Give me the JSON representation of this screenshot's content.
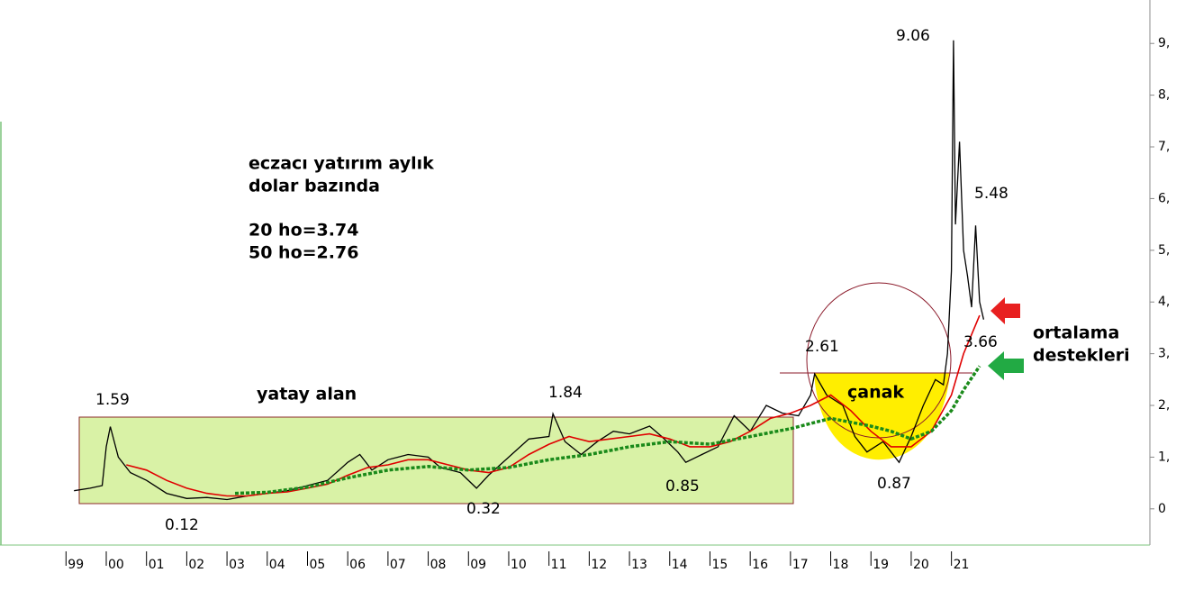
{
  "chart_data": {
    "type": "line",
    "title_lines": [
      "eczacı yatırım aylık",
      "dolar bazında",
      "20 ho=3.74",
      "50 ho=2.76"
    ],
    "annotations": [
      "1.59",
      "0.12",
      "0.32",
      "1.84",
      "0.85",
      "2.61",
      "0.87",
      "9.06",
      "5.48",
      "3.66",
      "yatay alan",
      "çanak",
      "ortalama",
      "destekleri"
    ],
    "xlim": [
      1997.36,
      2025.93
    ],
    "ylim": [
      -0.7,
      9.84
    ],
    "xticks": [
      {
        "value": 1999,
        "label": "99"
      },
      {
        "value": 2000,
        "label": "00"
      },
      {
        "value": 2001,
        "label": "01"
      },
      {
        "value": 2002,
        "label": "02"
      },
      {
        "value": 2003,
        "label": "03"
      },
      {
        "value": 2004,
        "label": "04"
      },
      {
        "value": 2005,
        "label": "05"
      },
      {
        "value": 2006,
        "label": "06"
      },
      {
        "value": 2007,
        "label": "07"
      },
      {
        "value": 2008,
        "label": "08"
      },
      {
        "value": 2009,
        "label": "09"
      },
      {
        "value": 2010,
        "label": "10"
      },
      {
        "value": 2011,
        "label": "11"
      },
      {
        "value": 2012,
        "label": "12"
      },
      {
        "value": 2013,
        "label": "13"
      },
      {
        "value": 2014,
        "label": "14"
      },
      {
        "value": 2015,
        "label": "15"
      },
      {
        "value": 2016,
        "label": "16"
      },
      {
        "value": 2017,
        "label": "17"
      },
      {
        "value": 2018,
        "label": "18"
      },
      {
        "value": 2019,
        "label": "19"
      },
      {
        "value": 2020,
        "label": "20"
      },
      {
        "value": 2021,
        "label": "21"
      }
    ],
    "yticks": [
      0,
      {
        "value": 1,
        "label": "1,"
      },
      {
        "value": 2,
        "label": "2,"
      },
      {
        "value": 3,
        "label": "3,"
      },
      {
        "value": 4,
        "label": "4,"
      },
      {
        "value": 5,
        "label": "5,"
      },
      {
        "value": 6,
        "label": "6,"
      },
      {
        "value": 7,
        "label": "7,"
      },
      {
        "value": 8,
        "label": "8,"
      },
      {
        "value": 9,
        "label": "9,"
      }
    ],
    "series": [
      {
        "color": "#000000",
        "width": 1.3,
        "x": [
          1999.2,
          1999.6,
          1999.9,
          2000.0,
          2000.1,
          2000.3,
          2000.6,
          2001.0,
          2001.5,
          2002.0,
          2002.5,
          2003.0,
          2003.5,
          2004.0,
          2004.5,
          2005.0,
          2005.5,
          2006.0,
          2006.3,
          2006.6,
          2007.0,
          2007.5,
          2008.0,
          2008.3,
          2008.8,
          2009.2,
          2009.5,
          2010.0,
          2010.5,
          2011.0,
          2011.1,
          2011.4,
          2011.8,
          2012.2,
          2012.6,
          2013.0,
          2013.5,
          2013.8,
          2014.2,
          2014.4,
          2014.8,
          2015.2,
          2015.6,
          2016.0,
          2016.4,
          2016.8,
          2017.2,
          2017.5,
          2017.6,
          2017.9,
          2018.3,
          2018.6,
          2018.9,
          2019.3,
          2019.7,
          2020.0,
          2020.3,
          2020.6,
          2020.8,
          2020.9,
          2021.0,
          2021.05,
          2021.1,
          2021.2,
          2021.3,
          2021.4,
          2021.5,
          2021.6,
          2021.7,
          2021.8
        ],
        "values": [
          0.35,
          0.4,
          0.45,
          1.2,
          1.59,
          1.0,
          0.7,
          0.55,
          0.3,
          0.2,
          0.22,
          0.18,
          0.25,
          0.3,
          0.35,
          0.45,
          0.55,
          0.9,
          1.05,
          0.75,
          0.95,
          1.05,
          1.0,
          0.8,
          0.7,
          0.4,
          0.65,
          1.0,
          1.35,
          1.4,
          1.84,
          1.3,
          1.05,
          1.3,
          1.5,
          1.45,
          1.6,
          1.4,
          1.1,
          0.9,
          1.05,
          1.2,
          1.8,
          1.5,
          2.0,
          1.85,
          1.8,
          2.2,
          2.61,
          2.2,
          2.0,
          1.4,
          1.1,
          1.3,
          0.9,
          1.4,
          2.0,
          2.5,
          2.4,
          3.0,
          4.6,
          9.06,
          5.5,
          7.1,
          5.0,
          4.5,
          3.9,
          5.48,
          4.0,
          3.66
        ]
      },
      {
        "color": "#e00000",
        "width": 1.6,
        "x": [
          2000.5,
          2001.0,
          2001.5,
          2002.0,
          2002.5,
          2003.0,
          2003.5,
          2004.0,
          2004.5,
          2005.0,
          2005.5,
          2006.0,
          2006.5,
          2007.0,
          2007.5,
          2008.0,
          2008.5,
          2009.0,
          2009.5,
          2010.0,
          2010.5,
          2011.0,
          2011.5,
          2012.0,
          2012.5,
          2013.0,
          2013.5,
          2014.0,
          2014.5,
          2015.0,
          2015.5,
          2016.0,
          2016.5,
          2017.0,
          2017.5,
          2018.0,
          2018.5,
          2019.0,
          2019.5,
          2020.0,
          2020.5,
          2021.0,
          2021.3,
          2021.7
        ],
        "values": [
          0.85,
          0.75,
          0.55,
          0.4,
          0.3,
          0.25,
          0.25,
          0.3,
          0.33,
          0.4,
          0.48,
          0.65,
          0.8,
          0.85,
          0.95,
          0.95,
          0.85,
          0.75,
          0.7,
          0.8,
          1.05,
          1.25,
          1.4,
          1.3,
          1.35,
          1.4,
          1.45,
          1.35,
          1.2,
          1.2,
          1.3,
          1.5,
          1.75,
          1.85,
          2.0,
          2.2,
          1.9,
          1.5,
          1.2,
          1.2,
          1.5,
          2.2,
          3.0,
          3.74
        ]
      },
      {
        "color": "#1a8a1a",
        "width": 3.5,
        "dashed": true,
        "x": [
          2003.2,
          2004.0,
          2005.0,
          2006.0,
          2007.0,
          2008.0,
          2009.0,
          2010.0,
          2011.0,
          2012.0,
          2013.0,
          2014.0,
          2015.0,
          2016.0,
          2017.0,
          2018.0,
          2019.0,
          2019.5,
          2020.0,
          2020.5,
          2021.0,
          2021.3,
          2021.7
        ],
        "values": [
          0.3,
          0.32,
          0.42,
          0.6,
          0.75,
          0.82,
          0.75,
          0.8,
          0.95,
          1.05,
          1.2,
          1.3,
          1.25,
          1.4,
          1.55,
          1.75,
          1.6,
          1.5,
          1.35,
          1.5,
          1.9,
          2.3,
          2.76
        ]
      }
    ]
  }
}
